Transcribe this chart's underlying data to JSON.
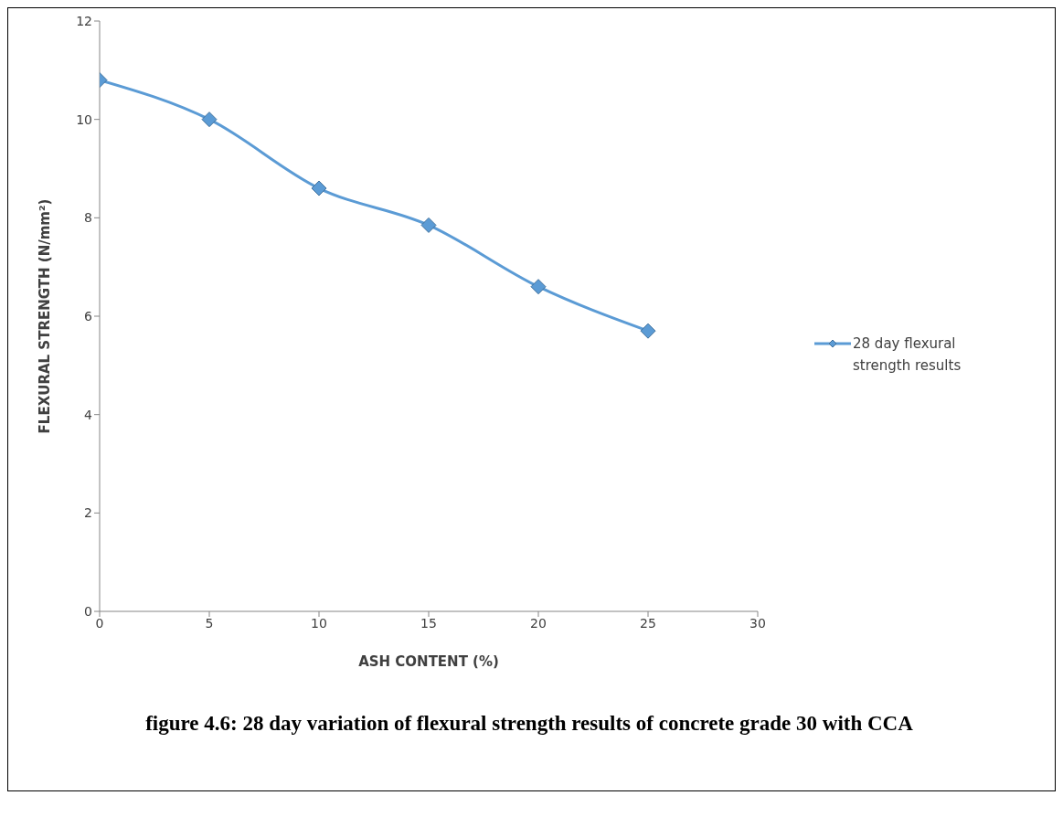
{
  "chart_data": {
    "type": "line",
    "title": "figure 4.6: 28 day variation of flexural strength results of concrete grade 30 with CCA",
    "xlabel": "ASH CONTENT (%)",
    "ylabel": "FLEXURAL STRENGTH (N/mm²)",
    "x": [
      0,
      5,
      10,
      15,
      20,
      25
    ],
    "series": [
      {
        "name": "28 day flexural strength results",
        "color": "#5b9bd5",
        "values": [
          10.8,
          10.0,
          8.6,
          7.85,
          6.6,
          5.7
        ]
      }
    ],
    "xlim": [
      0,
      30
    ],
    "xticks": [
      0,
      5,
      10,
      15,
      20,
      25,
      30
    ],
    "ylim": [
      0,
      12
    ],
    "yticks": [
      0,
      2,
      4,
      6,
      8,
      10,
      12
    ],
    "legend": "right",
    "marker": "diamond",
    "line_style": "solid"
  }
}
